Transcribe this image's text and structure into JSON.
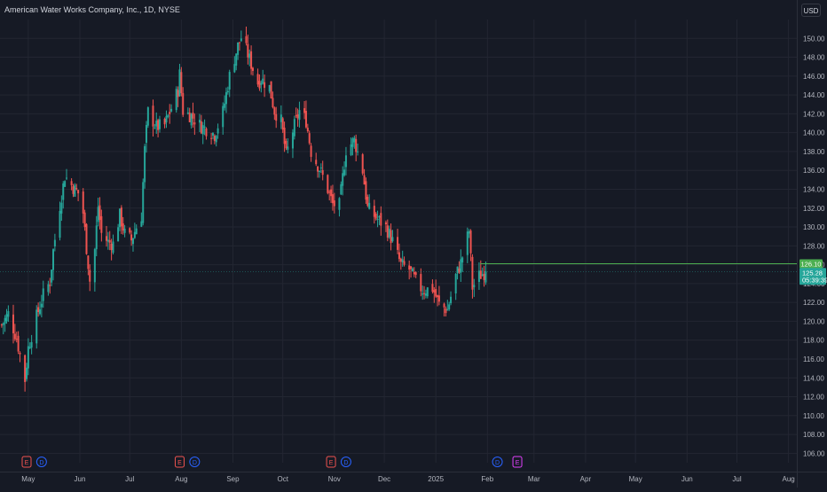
{
  "header": {
    "title": "American Water Works Company, Inc., 1D, NYSE",
    "currency": "USD"
  },
  "price_tags": {
    "line_price": "126.10",
    "last_price": "125.28",
    "countdown": "05:39:39"
  },
  "event_markers": [
    {
      "label": "E",
      "kind": "earnings",
      "date": "2024-04-30"
    },
    {
      "label": "D",
      "kind": "dividend",
      "date": "2024-05-09"
    },
    {
      "label": "E",
      "kind": "earnings",
      "date": "2024-07-31"
    },
    {
      "label": "D",
      "kind": "dividend",
      "date": "2024-08-09"
    },
    {
      "label": "E",
      "kind": "earnings",
      "date": "2024-10-30"
    },
    {
      "label": "D",
      "kind": "dividend",
      "date": "2024-11-08"
    },
    {
      "label": "D",
      "kind": "dividend",
      "date": "2025-02-07"
    },
    {
      "label": "E",
      "kind": "earnings",
      "date": "2025-02-19"
    }
  ],
  "colors": {
    "background": "#161a25",
    "grid": "#232632",
    "up": "#26a69a",
    "down": "#ef5350",
    "horizontal_line": "#4caf50",
    "earnings_marker": "#ef5350",
    "dividend_marker": "#2962ff",
    "future_earnings_marker": "#e040fb",
    "axis_text": "#b2b5be"
  },
  "chart_data": {
    "type": "candlestick",
    "title": "American Water Works Company, Inc., 1D, NYSE",
    "ylim": [
      105,
      152
    ],
    "y_ticks": [
      106,
      108,
      110,
      112,
      114,
      116,
      118,
      120,
      122,
      124,
      126,
      128,
      130,
      132,
      134,
      136,
      138,
      140,
      142,
      144,
      146,
      148,
      150
    ],
    "y_tick_labels": [
      "106.00",
      "108.00",
      "110.00",
      "112.00",
      "114.00",
      "116.00",
      "118.00",
      "120.00",
      "122.00",
      "124.00",
      "126.00",
      "128.00",
      "130.00",
      "132.00",
      "134.00",
      "136.00",
      "138.00",
      "140.00",
      "142.00",
      "144.00",
      "146.00",
      "148.00",
      "150.00"
    ],
    "x_range": [
      "2024-04-14",
      "2025-08-06"
    ],
    "x_ticks": [
      {
        "label": "May",
        "date": "2024-05-01"
      },
      {
        "label": "Jun",
        "date": "2024-06-01"
      },
      {
        "label": "Jul",
        "date": "2024-07-01"
      },
      {
        "label": "Aug",
        "date": "2024-08-01"
      },
      {
        "label": "Sep",
        "date": "2024-09-01"
      },
      {
        "label": "Oct",
        "date": "2024-10-01"
      },
      {
        "label": "Nov",
        "date": "2024-11-01"
      },
      {
        "label": "Dec",
        "date": "2024-12-01"
      },
      {
        "label": "2025",
        "date": "2025-01-01"
      },
      {
        "label": "Feb",
        "date": "2025-02-01"
      },
      {
        "label": "Mar",
        "date": "2025-03-01"
      },
      {
        "label": "Apr",
        "date": "2025-04-01"
      },
      {
        "label": "May",
        "date": "2025-05-01"
      },
      {
        "label": "Jun",
        "date": "2025-06-01"
      },
      {
        "label": "Jul",
        "date": "2025-07-01"
      },
      {
        "label": "Aug",
        "date": "2025-08-01"
      }
    ],
    "horizontal_line": {
      "value": 126.1,
      "from": "2025-02-01"
    },
    "last_price": 125.28,
    "close_path": [
      [
        "2024-04-15",
        119.6
      ],
      [
        "2024-04-19",
        120.8
      ],
      [
        "2024-04-24",
        118.2
      ],
      [
        "2024-04-29",
        113.8
      ],
      [
        "2024-05-01",
        117.2
      ],
      [
        "2024-05-06",
        120.5
      ],
      [
        "2024-05-10",
        122.8
      ],
      [
        "2024-05-14",
        124.2
      ],
      [
        "2024-05-16",
        127.5
      ],
      [
        "2024-05-20",
        132.3
      ],
      [
        "2024-05-23",
        135.4
      ],
      [
        "2024-05-28",
        134.2
      ],
      [
        "2024-05-31",
        133.6
      ],
      [
        "2024-06-03",
        131.5
      ],
      [
        "2024-06-05",
        127.8
      ],
      [
        "2024-06-07",
        124.3
      ],
      [
        "2024-06-10",
        127.6
      ],
      [
        "2024-06-12",
        132.2
      ],
      [
        "2024-06-14",
        129.3
      ],
      [
        "2024-06-18",
        128.4
      ],
      [
        "2024-06-21",
        128.2
      ],
      [
        "2024-06-25",
        131.2
      ],
      [
        "2024-06-28",
        129.3
      ],
      [
        "2024-07-02",
        128.6
      ],
      [
        "2024-07-05",
        130.0
      ],
      [
        "2024-07-08",
        131.2
      ],
      [
        "2024-07-10",
        138.2
      ],
      [
        "2024-07-12",
        142.2
      ],
      [
        "2024-07-17",
        140.6
      ],
      [
        "2024-07-22",
        140.8
      ],
      [
        "2024-07-26",
        142.6
      ],
      [
        "2024-07-30",
        144.5
      ],
      [
        "2024-07-31",
        146.2
      ],
      [
        "2024-08-02",
        142.3
      ],
      [
        "2024-08-07",
        141.8
      ],
      [
        "2024-08-12",
        140.8
      ],
      [
        "2024-08-16",
        140.4
      ],
      [
        "2024-08-21",
        139.8
      ],
      [
        "2024-08-26",
        142.2
      ],
      [
        "2024-08-30",
        146.0
      ],
      [
        "2024-09-04",
        149.2
      ],
      [
        "2024-09-06",
        150.1
      ],
      [
        "2024-09-10",
        148.3
      ],
      [
        "2024-09-16",
        145.3
      ],
      [
        "2024-09-18",
        145.7
      ],
      [
        "2024-09-23",
        144.8
      ],
      [
        "2024-09-26",
        142.3
      ],
      [
        "2024-09-30",
        141.2
      ],
      [
        "2024-10-03",
        137.6
      ],
      [
        "2024-10-07",
        140.2
      ],
      [
        "2024-10-11",
        142.3
      ],
      [
        "2024-10-15",
        141.3
      ],
      [
        "2024-10-18",
        138.0
      ],
      [
        "2024-10-23",
        136.2
      ],
      [
        "2024-10-28",
        134.0
      ],
      [
        "2024-10-31",
        132.4
      ],
      [
        "2024-11-04",
        132.3
      ],
      [
        "2024-11-08",
        138.2
      ],
      [
        "2024-11-13",
        139.2
      ],
      [
        "2024-11-18",
        136.0
      ],
      [
        "2024-11-21",
        132.0
      ],
      [
        "2024-11-26",
        131.0
      ],
      [
        "2024-12-02",
        130.0
      ],
      [
        "2024-12-06",
        128.5
      ],
      [
        "2024-12-11",
        126.0
      ],
      [
        "2024-12-16",
        125.5
      ],
      [
        "2024-12-20",
        124.2
      ],
      [
        "2024-12-24",
        123.3
      ],
      [
        "2024-12-30",
        123.5
      ],
      [
        "2025-01-03",
        121.8
      ],
      [
        "2025-01-08",
        121.2
      ],
      [
        "2025-01-13",
        124.8
      ],
      [
        "2025-01-16",
        126.2
      ],
      [
        "2025-01-21",
        129.6
      ],
      [
        "2025-01-23",
        123.6
      ],
      [
        "2025-01-27",
        124.8
      ],
      [
        "2025-01-31",
        125.28
      ]
    ]
  }
}
